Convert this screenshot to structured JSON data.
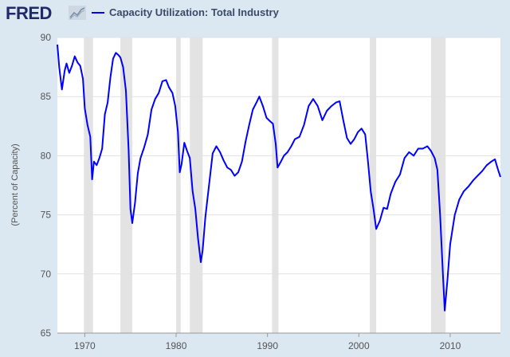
{
  "header": {
    "logo_text": "FRED",
    "legend_label": "Capacity Utilization: Total Industry"
  },
  "colors": {
    "line": "#0000ff",
    "recession": "#e3e3e3",
    "background": "#dbe8f1",
    "plot_bg": "#ffffff"
  },
  "icons": [
    "fred-logo-chart-icon"
  ],
  "chart_data": {
    "type": "line",
    "title": "Capacity Utilization: Total Industry",
    "xlabel": "",
    "ylabel": "(Percent of Capacity)",
    "xlim": [
      1967.0,
      2015.5
    ],
    "ylim": [
      65,
      90
    ],
    "yticks": [
      65,
      70,
      75,
      80,
      85,
      90
    ],
    "xticks": [
      1970,
      1980,
      1990,
      2000,
      2010
    ],
    "grid": true,
    "legend": "top-left",
    "recessions": [
      [
        1969.9,
        1970.9
      ],
      [
        1973.9,
        1975.2
      ],
      [
        1980.0,
        1980.5
      ],
      [
        1981.5,
        1982.9
      ],
      [
        1990.5,
        1991.2
      ],
      [
        2001.2,
        2001.9
      ],
      [
        2007.9,
        2009.5
      ]
    ],
    "series": [
      {
        "x": [
          1967.0,
          1967.2,
          1967.5,
          1967.8,
          1968.0,
          1968.3,
          1968.6,
          1968.9,
          1969.2,
          1969.5,
          1969.8,
          1970.0,
          1970.3,
          1970.6,
          1970.8,
          1971.0,
          1971.3,
          1971.6,
          1971.9,
          1972.2,
          1972.5,
          1972.8,
          1973.1,
          1973.4,
          1973.7,
          1973.9,
          1974.2,
          1974.5,
          1974.8,
          1975.0,
          1975.2,
          1975.5,
          1975.8,
          1976.1,
          1976.5,
          1976.9,
          1977.3,
          1977.7,
          1978.1,
          1978.5,
          1978.9,
          1979.2,
          1979.6,
          1979.9,
          1980.2,
          1980.4,
          1980.6,
          1980.9,
          1981.2,
          1981.5,
          1981.8,
          1982.1,
          1982.4,
          1982.7,
          1982.9,
          1983.2,
          1983.6,
          1984.0,
          1984.4,
          1984.8,
          1985.2,
          1985.6,
          1986.0,
          1986.4,
          1986.8,
          1987.2,
          1987.6,
          1988.0,
          1988.4,
          1988.8,
          1989.1,
          1989.5,
          1989.9,
          1990.3,
          1990.6,
          1990.9,
          1991.1,
          1991.4,
          1991.8,
          1992.2,
          1992.6,
          1993.0,
          1993.5,
          1994.0,
          1994.5,
          1995.0,
          1995.5,
          1996.0,
          1996.5,
          1997.0,
          1997.5,
          1997.9,
          1998.3,
          1998.7,
          1999.1,
          1999.5,
          1999.9,
          2000.3,
          2000.7,
          2001.0,
          2001.3,
          2001.6,
          2001.9,
          2002.3,
          2002.7,
          2003.1,
          2003.5,
          2004.0,
          2004.5,
          2005.0,
          2005.5,
          2006.0,
          2006.5,
          2007.0,
          2007.5,
          2007.9,
          2008.3,
          2008.6,
          2008.9,
          2009.2,
          2009.4,
          2009.7,
          2010.0,
          2010.5,
          2011.0,
          2011.5,
          2012.0,
          2012.5,
          2013.0,
          2013.5,
          2014.0,
          2014.5,
          2014.9,
          2015.2,
          2015.5
        ],
        "values": [
          89.4,
          87.5,
          85.6,
          87.2,
          87.8,
          87.0,
          87.6,
          88.4,
          87.9,
          87.6,
          86.5,
          84.0,
          82.6,
          81.6,
          78.0,
          79.5,
          79.2,
          79.8,
          80.6,
          83.5,
          84.5,
          86.6,
          88.2,
          88.7,
          88.5,
          88.3,
          87.5,
          85.5,
          80.5,
          75.5,
          74.3,
          76.0,
          78.5,
          79.8,
          80.7,
          81.8,
          83.9,
          84.8,
          85.3,
          86.3,
          86.4,
          85.8,
          85.3,
          84.2,
          82.0,
          78.6,
          79.3,
          81.1,
          80.4,
          79.8,
          77.0,
          75.5,
          73.0,
          71.0,
          72.0,
          74.8,
          77.5,
          80.2,
          80.8,
          80.3,
          79.6,
          79.0,
          78.8,
          78.3,
          78.6,
          79.5,
          81.2,
          82.6,
          83.9,
          84.5,
          85.0,
          84.2,
          83.2,
          82.9,
          82.7,
          81.0,
          79.0,
          79.4,
          80.0,
          80.3,
          80.8,
          81.4,
          81.6,
          82.6,
          84.2,
          84.8,
          84.2,
          83.0,
          83.8,
          84.2,
          84.5,
          84.6,
          83.0,
          81.5,
          81.0,
          81.4,
          82.0,
          82.3,
          81.8,
          79.5,
          77.0,
          75.5,
          73.8,
          74.5,
          75.6,
          75.5,
          76.8,
          77.8,
          78.4,
          79.8,
          80.3,
          80.0,
          80.6,
          80.6,
          80.8,
          80.4,
          79.8,
          78.8,
          75.0,
          70.0,
          66.9,
          69.5,
          72.5,
          75.0,
          76.3,
          77.0,
          77.4,
          77.9,
          78.3,
          78.7,
          79.2,
          79.5,
          79.7,
          78.9,
          78.2
        ]
      }
    ]
  }
}
